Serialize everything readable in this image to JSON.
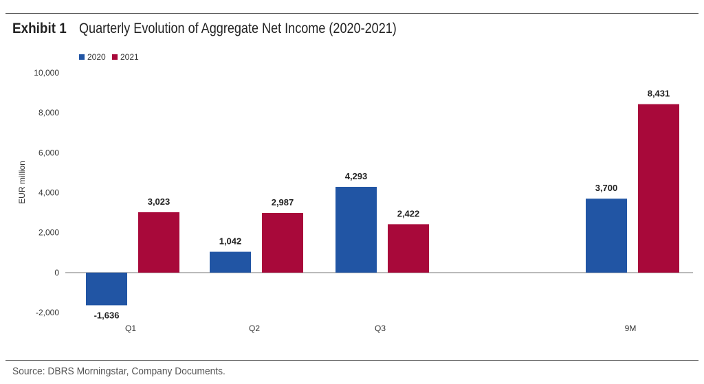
{
  "header": {
    "exhibit_label": "Exhibit 1",
    "title": "Quarterly Evolution of Aggregate Net Income (2020-2021)"
  },
  "footer": {
    "source": "Source: DBRS Morningstar, Company Documents."
  },
  "chart_data": {
    "type": "bar",
    "categories": [
      "Q1",
      "Q2",
      "Q3",
      "9M"
    ],
    "series": [
      {
        "name": "2020",
        "color": "#2155a4",
        "values": [
          -1636,
          1042,
          4293,
          3700
        ],
        "labels": [
          "-1,636",
          "1,042",
          "4,293",
          "3,700"
        ]
      },
      {
        "name": "2021",
        "color": "#a8093a",
        "values": [
          3023,
          2987,
          2422,
          8431
        ],
        "labels": [
          "3,023",
          "2,987",
          "2,422",
          "8,431"
        ]
      }
    ],
    "ylabel": "EUR million",
    "ylim": [
      -2000,
      10000
    ],
    "yticks": [
      10000,
      8000,
      6000,
      4000,
      2000,
      0,
      -2000
    ],
    "ytick_labels": [
      "10,000",
      "8,000",
      "6,000",
      "4,000",
      "2,000",
      "0",
      "-2,000"
    ],
    "legend_position": "top-left",
    "grid": false
  }
}
